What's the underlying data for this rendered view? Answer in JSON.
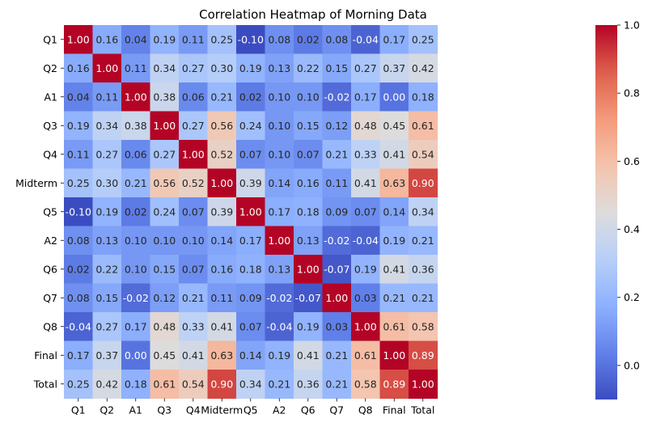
{
  "chart_data": {
    "type": "heatmap",
    "title": "Correlation Heatmap of Morning Data",
    "xlabel": "",
    "ylabel": "",
    "labels": [
      "Q1",
      "Q2",
      "A1",
      "Q3",
      "Q4",
      "Midterm",
      "Q5",
      "A2",
      "Q6",
      "Q7",
      "Q8",
      "Final",
      "Total"
    ],
    "matrix": [
      [
        1.0,
        0.16,
        0.04,
        0.19,
        0.11,
        0.25,
        -0.1,
        0.08,
        0.02,
        0.08,
        -0.04,
        0.17,
        0.25
      ],
      [
        0.16,
        1.0,
        0.11,
        0.34,
        0.27,
        0.3,
        0.19,
        0.13,
        0.22,
        0.15,
        0.27,
        0.37,
        0.42
      ],
      [
        0.04,
        0.11,
        1.0,
        0.38,
        0.06,
        0.21,
        0.02,
        0.1,
        0.1,
        -0.02,
        0.17,
        0.0,
        0.18
      ],
      [
        0.19,
        0.34,
        0.38,
        1.0,
        0.27,
        0.56,
        0.24,
        0.1,
        0.15,
        0.12,
        0.48,
        0.45,
        0.61
      ],
      [
        0.11,
        0.27,
        0.06,
        0.27,
        1.0,
        0.52,
        0.07,
        0.1,
        0.07,
        0.21,
        0.33,
        0.41,
        0.54
      ],
      [
        0.25,
        0.3,
        0.21,
        0.56,
        0.52,
        1.0,
        0.39,
        0.14,
        0.16,
        0.11,
        0.41,
        0.63,
        0.9
      ],
      [
        -0.1,
        0.19,
        0.02,
        0.24,
        0.07,
        0.39,
        1.0,
        0.17,
        0.18,
        0.09,
        0.07,
        0.14,
        0.34
      ],
      [
        0.08,
        0.13,
        0.1,
        0.1,
        0.1,
        0.14,
        0.17,
        1.0,
        0.13,
        -0.02,
        -0.04,
        0.19,
        0.21
      ],
      [
        0.02,
        0.22,
        0.1,
        0.15,
        0.07,
        0.16,
        0.18,
        0.13,
        1.0,
        -0.07,
        0.19,
        0.41,
        0.36
      ],
      [
        0.08,
        0.15,
        -0.02,
        0.12,
        0.21,
        0.11,
        0.09,
        -0.02,
        -0.07,
        1.0,
        0.03,
        0.21,
        0.21
      ],
      [
        -0.04,
        0.27,
        0.17,
        0.48,
        0.33,
        0.41,
        0.07,
        -0.04,
        0.19,
        0.03,
        1.0,
        0.61,
        0.58
      ],
      [
        0.17,
        0.37,
        0.0,
        0.45,
        0.41,
        0.63,
        0.14,
        0.19,
        0.41,
        0.21,
        0.61,
        1.0,
        0.89
      ],
      [
        0.25,
        0.42,
        0.18,
        0.61,
        0.54,
        0.9,
        0.34,
        0.21,
        0.36,
        0.21,
        0.58,
        0.89,
        1.0
      ]
    ],
    "value_format": "2 decimals",
    "colormap": "coolwarm",
    "vmin": -0.1,
    "vmax": 1.0,
    "colorbar_ticks": [
      "0.0",
      "0.2",
      "0.4",
      "0.6",
      "0.8",
      "1.0"
    ],
    "colorbar_tick_values": [
      0.0,
      0.2,
      0.4,
      0.6,
      0.8,
      1.0
    ],
    "grid": false,
    "legend": "colorbar-right"
  }
}
